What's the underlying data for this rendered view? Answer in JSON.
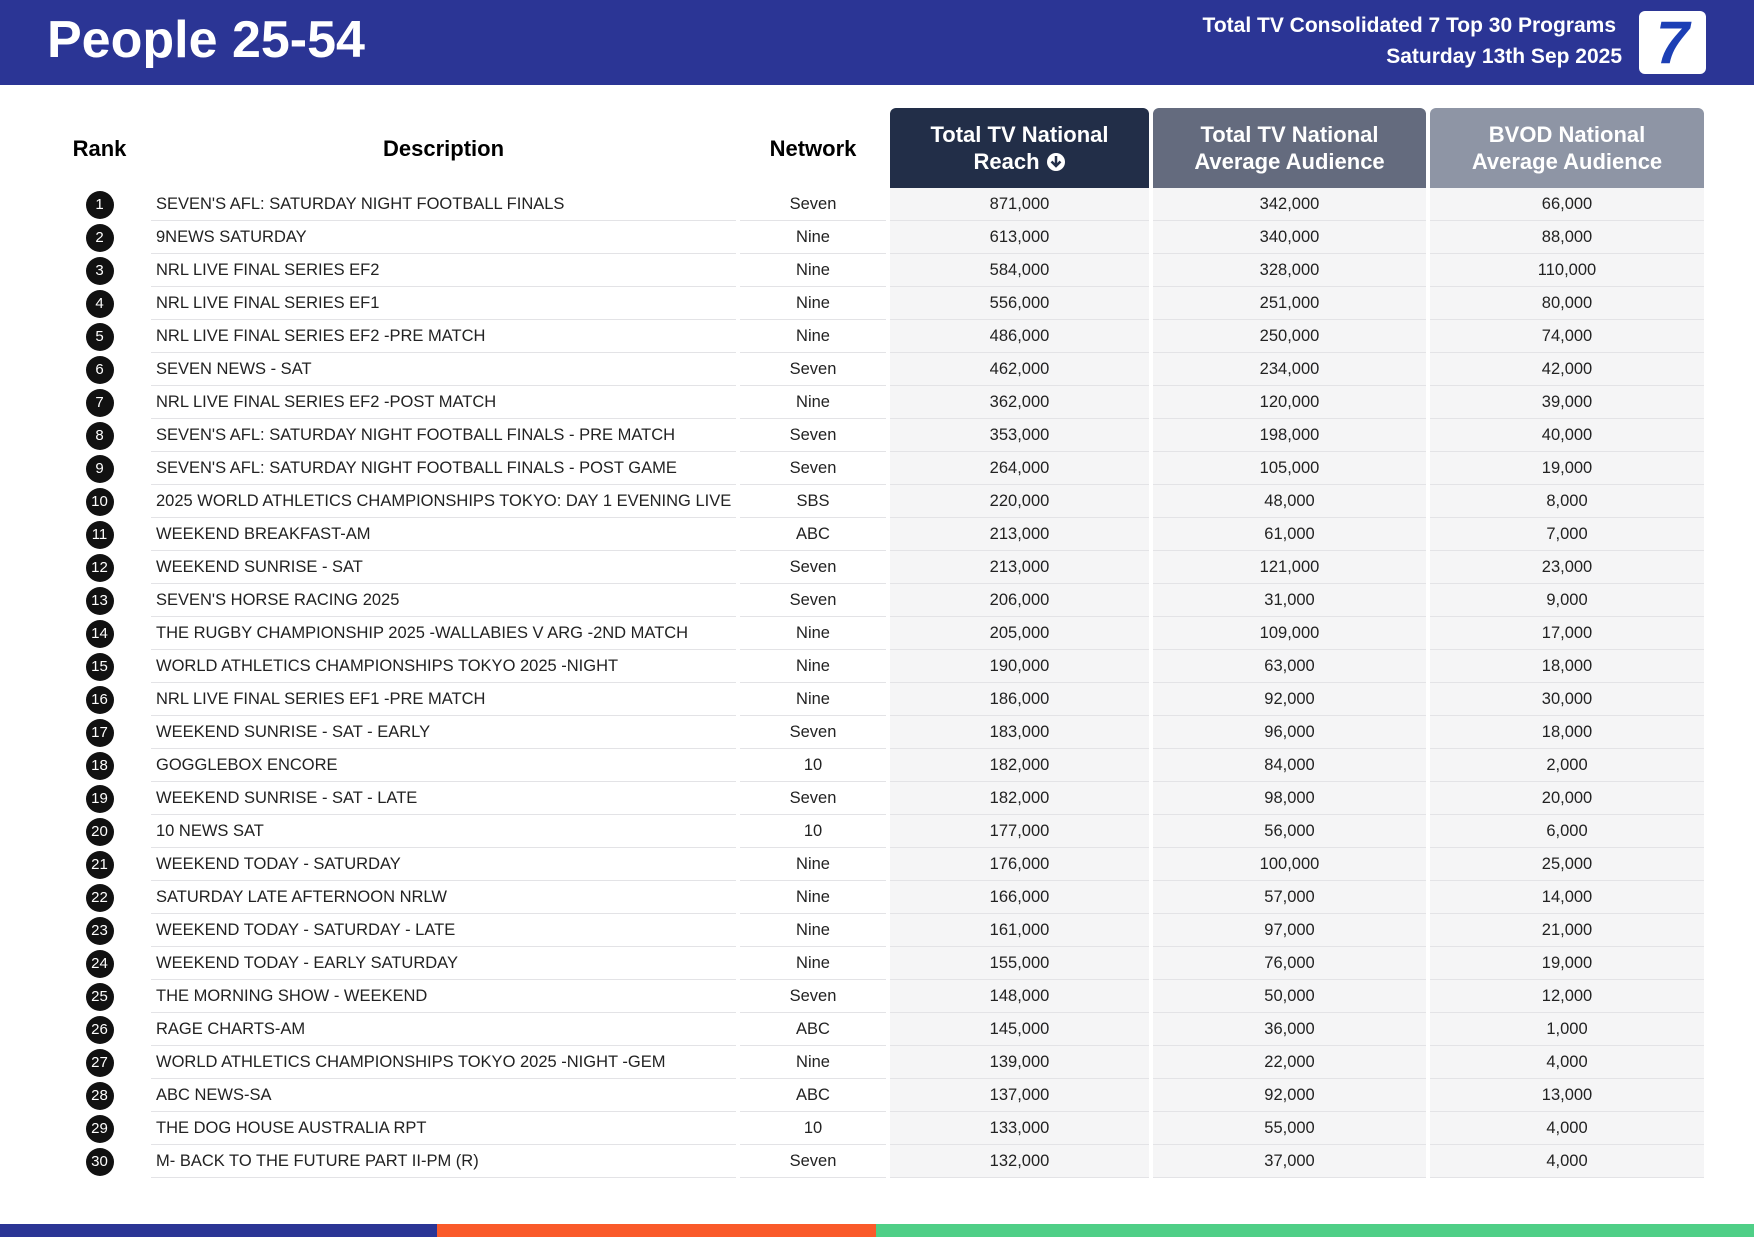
{
  "header": {
    "title": "People 25-54",
    "subtitle": "Total TV Consolidated 7 Top 30 Programs",
    "date": "Saturday 13th Sep 2025",
    "logo": "7"
  },
  "table": {
    "columns": [
      [
        "Rank"
      ],
      [
        "Description"
      ],
      [
        "Network"
      ],
      [
        "Total TV National",
        "Reach"
      ],
      [
        "Total TV National",
        "Average Audience"
      ],
      [
        "BVOD National",
        "Average Audience"
      ]
    ],
    "rows": [
      [
        1,
        "SEVEN'S AFL: SATURDAY NIGHT FOOTBALL FINALS",
        "Seven",
        "871,000",
        "342,000",
        "66,000"
      ],
      [
        2,
        "9NEWS SATURDAY",
        "Nine",
        "613,000",
        "340,000",
        "88,000"
      ],
      [
        3,
        "NRL LIVE FINAL SERIES EF2",
        "Nine",
        "584,000",
        "328,000",
        "110,000"
      ],
      [
        4,
        "NRL LIVE FINAL SERIES EF1",
        "Nine",
        "556,000",
        "251,000",
        "80,000"
      ],
      [
        5,
        "NRL LIVE FINAL SERIES EF2 -PRE MATCH",
        "Nine",
        "486,000",
        "250,000",
        "74,000"
      ],
      [
        6,
        "SEVEN NEWS - SAT",
        "Seven",
        "462,000",
        "234,000",
        "42,000"
      ],
      [
        7,
        "NRL LIVE FINAL SERIES EF2 -POST MATCH",
        "Nine",
        "362,000",
        "120,000",
        "39,000"
      ],
      [
        8,
        "SEVEN'S AFL: SATURDAY NIGHT FOOTBALL FINALS - PRE MATCH",
        "Seven",
        "353,000",
        "198,000",
        "40,000"
      ],
      [
        9,
        "SEVEN'S AFL: SATURDAY NIGHT FOOTBALL FINALS - POST GAME",
        "Seven",
        "264,000",
        "105,000",
        "19,000"
      ],
      [
        10,
        "2025 WORLD ATHLETICS CHAMPIONSHIPS TOKYO: DAY 1 EVENING LIVE",
        "SBS",
        "220,000",
        "48,000",
        "8,000"
      ],
      [
        11,
        "WEEKEND BREAKFAST-AM",
        "ABC",
        "213,000",
        "61,000",
        "7,000"
      ],
      [
        12,
        "WEEKEND SUNRISE - SAT",
        "Seven",
        "213,000",
        "121,000",
        "23,000"
      ],
      [
        13,
        "SEVEN'S HORSE RACING 2025",
        "Seven",
        "206,000",
        "31,000",
        "9,000"
      ],
      [
        14,
        "THE RUGBY CHAMPIONSHIP 2025 -WALLABIES V ARG -2ND MATCH",
        "Nine",
        "205,000",
        "109,000",
        "17,000"
      ],
      [
        15,
        "WORLD ATHLETICS CHAMPIONSHIPS TOKYO 2025 -NIGHT",
        "Nine",
        "190,000",
        "63,000",
        "18,000"
      ],
      [
        16,
        "NRL LIVE FINAL SERIES EF1 -PRE MATCH",
        "Nine",
        "186,000",
        "92,000",
        "30,000"
      ],
      [
        17,
        "WEEKEND SUNRISE - SAT - EARLY",
        "Seven",
        "183,000",
        "96,000",
        "18,000"
      ],
      [
        18,
        "GOGGLEBOX ENCORE",
        "10",
        "182,000",
        "84,000",
        "2,000"
      ],
      [
        19,
        "WEEKEND SUNRISE - SAT - LATE",
        "Seven",
        "182,000",
        "98,000",
        "20,000"
      ],
      [
        20,
        "10 NEWS SAT",
        "10",
        "177,000",
        "56,000",
        "6,000"
      ],
      [
        21,
        "WEEKEND TODAY - SATURDAY",
        "Nine",
        "176,000",
        "100,000",
        "25,000"
      ],
      [
        22,
        "SATURDAY LATE AFTERNOON NRLW",
        "Nine",
        "166,000",
        "57,000",
        "14,000"
      ],
      [
        23,
        "WEEKEND TODAY - SATURDAY - LATE",
        "Nine",
        "161,000",
        "97,000",
        "21,000"
      ],
      [
        24,
        "WEEKEND TODAY - EARLY SATURDAY",
        "Nine",
        "155,000",
        "76,000",
        "19,000"
      ],
      [
        25,
        "THE MORNING SHOW - WEEKEND",
        "Seven",
        "148,000",
        "50,000",
        "12,000"
      ],
      [
        26,
        "RAGE CHARTS-AM",
        "ABC",
        "145,000",
        "36,000",
        "1,000"
      ],
      [
        27,
        "WORLD ATHLETICS CHAMPIONSHIPS TOKYO 2025 -NIGHT -GEM",
        "Nine",
        "139,000",
        "22,000",
        "4,000"
      ],
      [
        28,
        "ABC NEWS-SA",
        "ABC",
        "137,000",
        "92,000",
        "13,000"
      ],
      [
        29,
        "THE DOG HOUSE AUSTRALIA RPT",
        "10",
        "133,000",
        "55,000",
        "4,000"
      ],
      [
        30,
        "M- BACK TO THE FUTURE PART II-PM (R)",
        "Seven",
        "132,000",
        "37,000",
        "4,000"
      ]
    ]
  }
}
